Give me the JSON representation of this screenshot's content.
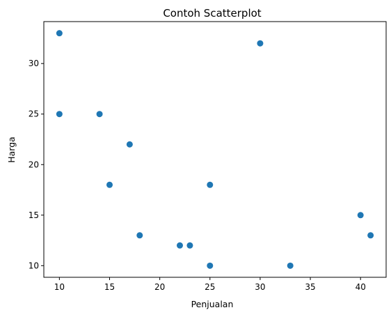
{
  "chart_data": {
    "type": "scatter",
    "title": "Contoh Scatterplot",
    "xlabel": "Penjualan",
    "ylabel": "Harga",
    "xlim": [
      8.45,
      42.55
    ],
    "ylim": [
      8.85,
      34.15
    ],
    "xticks": [
      10,
      15,
      20,
      25,
      30,
      35,
      40
    ],
    "yticks": [
      10,
      15,
      20,
      25,
      30
    ],
    "grid": false,
    "color": "#1f77b4",
    "points": [
      {
        "x": 10,
        "y": 33
      },
      {
        "x": 10,
        "y": 25
      },
      {
        "x": 14,
        "y": 25
      },
      {
        "x": 15,
        "y": 18
      },
      {
        "x": 17,
        "y": 22
      },
      {
        "x": 18,
        "y": 13
      },
      {
        "x": 22,
        "y": 12
      },
      {
        "x": 23,
        "y": 12
      },
      {
        "x": 25,
        "y": 10
      },
      {
        "x": 25,
        "y": 18
      },
      {
        "x": 30,
        "y": 32
      },
      {
        "x": 33,
        "y": 10
      },
      {
        "x": 40,
        "y": 15
      },
      {
        "x": 41,
        "y": 13
      }
    ]
  }
}
